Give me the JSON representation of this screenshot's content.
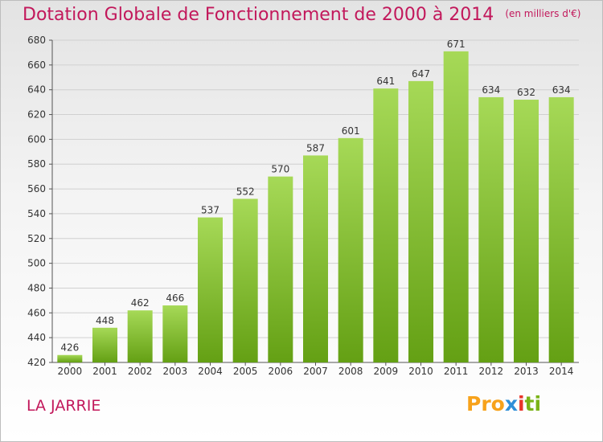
{
  "title": "Dotation Globale de Fonctionnement de 2000 à 2014",
  "unit": "(en milliers d'€)",
  "commune": "LA JARRIE",
  "logo": [
    "Pro",
    "x",
    "i",
    "ti"
  ],
  "colors": {
    "title": "#c2185b",
    "bar_light": "#a6d957",
    "bar_dark": "#64a014"
  },
  "chart_data": {
    "type": "bar",
    "categories": [
      "2000",
      "2001",
      "2002",
      "2003",
      "2004",
      "2005",
      "2006",
      "2007",
      "2008",
      "2009",
      "2010",
      "2011",
      "2012",
      "2013",
      "2014"
    ],
    "values": [
      426,
      448,
      462,
      466,
      537,
      552,
      570,
      587,
      601,
      641,
      647,
      671,
      634,
      632,
      634
    ],
    "ylim": [
      420,
      680
    ],
    "yticks": [
      420,
      440,
      460,
      480,
      500,
      520,
      540,
      560,
      580,
      600,
      620,
      640,
      660,
      680
    ],
    "grid": true,
    "legend": "none"
  }
}
